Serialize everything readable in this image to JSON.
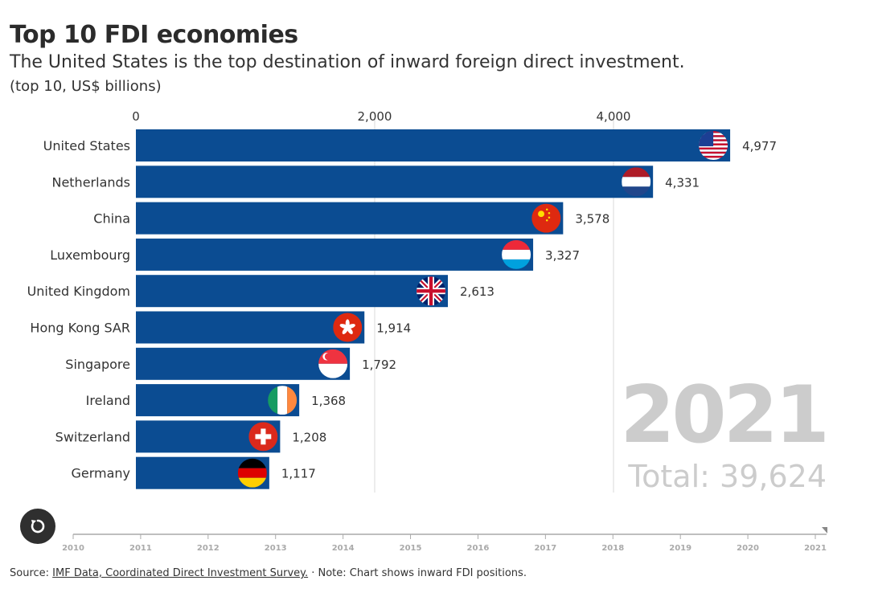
{
  "header": {
    "title": "Top 10 FDI economies",
    "subtitle": "The United States is the top destination of inward foreign direct investment.",
    "units": "(top 10, US$ billions)"
  },
  "chart_data": {
    "type": "bar",
    "orientation": "horizontal",
    "year": "2021",
    "total_label": "Total: 39,624",
    "x_ticks": [
      0,
      2000,
      4000
    ],
    "x_tick_labels": [
      "0",
      "2,000",
      "4,000"
    ],
    "xlim": [
      0,
      5500
    ],
    "grid": true,
    "bar_color": "#0b4c92",
    "categories": [
      "United States",
      "Netherlands",
      "China",
      "Luxembourg",
      "United Kingdom",
      "Hong Kong SAR",
      "Singapore",
      "Ireland",
      "Switzerland",
      "Germany"
    ],
    "values": [
      4977,
      4331,
      3578,
      3327,
      2613,
      1914,
      1792,
      1368,
      1208,
      1117
    ],
    "value_labels": [
      "4,977",
      "4,331",
      "3,578",
      "3,327",
      "2,613",
      "1,914",
      "1,792",
      "1,368",
      "1,208",
      "1,117"
    ],
    "flags": [
      "us-flag",
      "netherlands-flag",
      "china-flag",
      "luxembourg-flag",
      "uk-flag",
      "hong-kong-flag",
      "singapore-flag",
      "ireland-flag",
      "switzerland-flag",
      "germany-flag"
    ]
  },
  "timeline": {
    "years": [
      "2010",
      "2011",
      "2012",
      "2013",
      "2014",
      "2015",
      "2016",
      "2017",
      "2018",
      "2019",
      "2020",
      "2021"
    ],
    "current": "2021",
    "replay_icon": "replay-icon"
  },
  "footer": {
    "source_prefix": "Source: ",
    "source_link": "IMF Data, Coordinated Direct Investment Survey.",
    "note": " · Note: Chart shows inward FDI positions."
  }
}
